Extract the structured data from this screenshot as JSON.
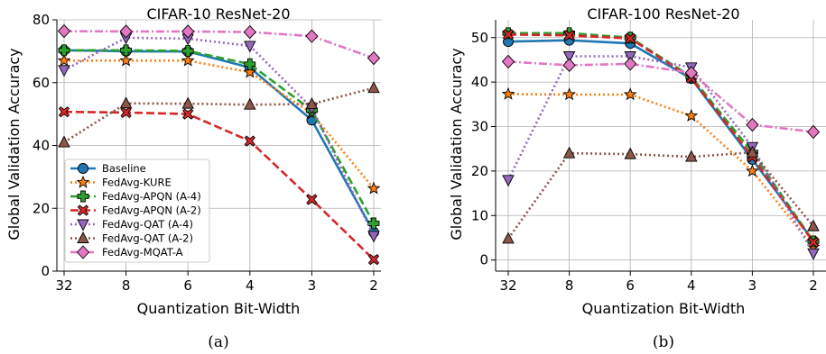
{
  "charts": [
    {
      "title": "CIFAR-10 ResNet-20",
      "xlabel": "Quantization Bit-Width",
      "ylabel": "Global Validation Accuracy",
      "caption": "(a)",
      "legend_location": "lower-left"
    },
    {
      "title": "CIFAR-100 ResNet-20",
      "xlabel": "Quantization Bit-Width",
      "ylabel": "Global Validation Accuracy",
      "caption": "(b)",
      "legend_location": "none"
    }
  ],
  "chart_data": [
    {
      "type": "line",
      "title": "CIFAR-10 ResNet-20",
      "xlabel": "Quantization Bit-Width",
      "ylabel": "Global Validation Accuracy",
      "categories": [
        "32",
        "8",
        "6",
        "4",
        "3",
        "2"
      ],
      "ylim": [
        0,
        80
      ],
      "yticks": [
        0,
        20,
        40,
        60,
        80
      ],
      "grid": true,
      "legend": "lower-left",
      "series": [
        {
          "name": "Baseline",
          "color": "#1f77b4",
          "dash": "solid",
          "marker": "circle",
          "values": [
            70.3,
            70.0,
            69.9,
            64.8,
            48.1,
            12.4
          ]
        },
        {
          "name": "FedAvg-KURE",
          "color": "#ff7f0e",
          "dash": "dotted",
          "marker": "star",
          "values": [
            67.0,
            67.0,
            67.0,
            63.3,
            50.2,
            26.3
          ]
        },
        {
          "name": "FedAvg-APQN (A-4)",
          "color": "#2ca02c",
          "dash": "dashed",
          "marker": "plus",
          "values": [
            70.3,
            70.3,
            70.1,
            65.9,
            51.2,
            15.2
          ]
        },
        {
          "name": "FedAvg-APQN (A-2)",
          "color": "#d62728",
          "dash": "dashed",
          "marker": "x",
          "values": [
            50.7,
            50.5,
            50.0,
            41.4,
            22.8,
            3.7
          ]
        },
        {
          "name": "FedAvg-QAT (A-4)",
          "color": "#9467bd",
          "dash": "dotted",
          "marker": "triangle-down",
          "values": [
            64.0,
            74.3,
            74.0,
            71.7,
            52.0,
            11.2
          ]
        },
        {
          "name": "FedAvg-QAT (A-2)",
          "color": "#8c564b",
          "dash": "dotted",
          "marker": "triangle-up",
          "values": [
            41.0,
            53.4,
            53.3,
            53.0,
            53.2,
            58.3
          ]
        },
        {
          "name": "FedAvg-MQAT-A",
          "color": "#e377c2",
          "dash": "dashdot",
          "marker": "diamond",
          "values": [
            76.4,
            76.3,
            76.3,
            76.1,
            74.8,
            67.8
          ]
        }
      ]
    },
    {
      "type": "line",
      "title": "CIFAR-100 ResNet-20",
      "xlabel": "Quantization Bit-Width",
      "ylabel": "Global Validation Accuracy",
      "categories": [
        "32",
        "8",
        "6",
        "4",
        "3",
        "2"
      ],
      "ylim": [
        -2.5,
        54
      ],
      "yticks": [
        0,
        10,
        20,
        30,
        40,
        50
      ],
      "grid": true,
      "legend": "none",
      "series": [
        {
          "name": "Baseline",
          "color": "#1f77b4",
          "dash": "solid",
          "marker": "circle",
          "values": [
            49.1,
            49.4,
            48.7,
            40.8,
            22.6,
            4.3
          ]
        },
        {
          "name": "FedAvg-KURE",
          "color": "#ff7f0e",
          "dash": "dotted",
          "marker": "star",
          "values": [
            37.3,
            37.2,
            37.2,
            32.4,
            20.0,
            2.9
          ]
        },
        {
          "name": "FedAvg-APQN (A-4)",
          "color": "#2ca02c",
          "dash": "dashed",
          "marker": "plus",
          "values": [
            51.0,
            51.0,
            50.0,
            41.2,
            24.2,
            4.2
          ]
        },
        {
          "name": "FedAvg-APQN (A-2)",
          "color": "#d62728",
          "dash": "dashed",
          "marker": "x",
          "values": [
            50.7,
            50.5,
            49.8,
            40.9,
            23.2,
            4.0
          ]
        },
        {
          "name": "FedAvg-QAT (A-4)",
          "color": "#9467bd",
          "dash": "dotted",
          "marker": "triangle-down",
          "values": [
            18.0,
            45.8,
            45.8,
            43.3,
            25.4,
            1.5
          ]
        },
        {
          "name": "FedAvg-QAT (A-2)",
          "color": "#8c564b",
          "dash": "dotted",
          "marker": "triangle-up",
          "values": [
            4.8,
            24.0,
            23.8,
            23.2,
            24.2,
            7.6
          ]
        },
        {
          "name": "FedAvg-MQAT-A",
          "color": "#e377c2",
          "dash": "dashdot",
          "marker": "diamond",
          "values": [
            44.6,
            43.8,
            44.1,
            42.1,
            30.4,
            28.8
          ]
        }
      ]
    }
  ]
}
